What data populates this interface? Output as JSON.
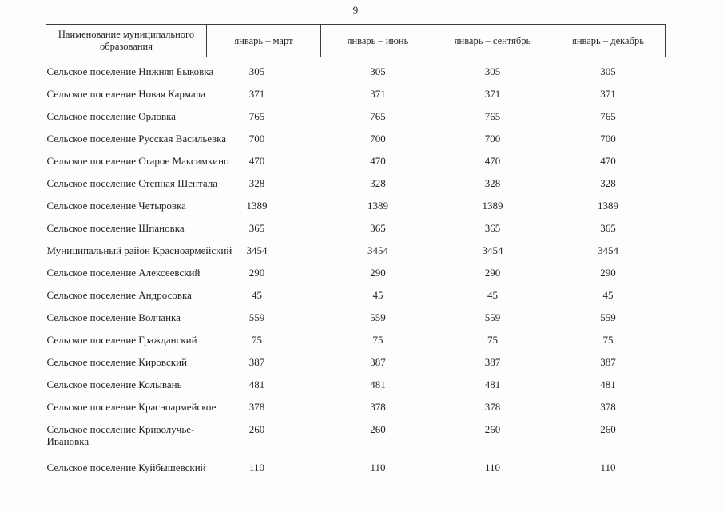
{
  "page": {
    "number": "9"
  },
  "colors": {
    "text": "#242424",
    "border": "#3c3c3c",
    "background": "#fdfdfd"
  },
  "table": {
    "name_header": "Наименование муниципального образования",
    "period_headers": [
      "январь – март",
      "январь – июнь",
      "январь – сентябрь",
      "январь – декабрь"
    ],
    "rows": [
      {
        "name": "Сельское поселение Нижняя Быковка",
        "values": [
          "305",
          "305",
          "305",
          "305"
        ]
      },
      {
        "name": "Сельское поселение Новая Кармала",
        "values": [
          "371",
          "371",
          "371",
          "371"
        ]
      },
      {
        "name": "Сельское поселение Орловка",
        "values": [
          "765",
          "765",
          "765",
          "765"
        ]
      },
      {
        "name": "Сельское поселение Русская Васильевка",
        "values": [
          "700",
          "700",
          "700",
          "700"
        ]
      },
      {
        "name": "Сельское поселение Старое Максимкино",
        "values": [
          "470",
          "470",
          "470",
          "470"
        ]
      },
      {
        "name": "Сельское поселение Степная Шентала",
        "values": [
          "328",
          "328",
          "328",
          "328"
        ]
      },
      {
        "name": "Сельское поселение Четыровка",
        "values": [
          "1389",
          "1389",
          "1389",
          "1389"
        ]
      },
      {
        "name": "Сельское поселение Шпановка",
        "values": [
          "365",
          "365",
          "365",
          "365"
        ]
      },
      {
        "name": "Муниципальный район Красноармейский",
        "values": [
          "3454",
          "3454",
          "3454",
          "3454"
        ]
      },
      {
        "name": "Сельское поселение Алексеевский",
        "values": [
          "290",
          "290",
          "290",
          "290"
        ]
      },
      {
        "name": "Сельское поселение Андросовка",
        "values": [
          "45",
          "45",
          "45",
          "45"
        ]
      },
      {
        "name": "Сельское поселение Волчанка",
        "values": [
          "559",
          "559",
          "559",
          "559"
        ]
      },
      {
        "name": "Сельское поселение Гражданский",
        "values": [
          "75",
          "75",
          "75",
          "75"
        ]
      },
      {
        "name": "Сельское поселение Кировский",
        "values": [
          "387",
          "387",
          "387",
          "387"
        ]
      },
      {
        "name": "Сельское поселение Колывань",
        "values": [
          "481",
          "481",
          "481",
          "481"
        ]
      },
      {
        "name": "Сельское поселение Красноармейское",
        "values": [
          "378",
          "378",
          "378",
          "378"
        ]
      },
      {
        "name": "Сельское поселение Криволучье-\nИвановка",
        "values": [
          "260",
          "260",
          "260",
          "260"
        ]
      },
      {
        "name": "Сельское поселение Куйбышевский",
        "values": [
          "110",
          "110",
          "110",
          "110"
        ]
      }
    ]
  }
}
